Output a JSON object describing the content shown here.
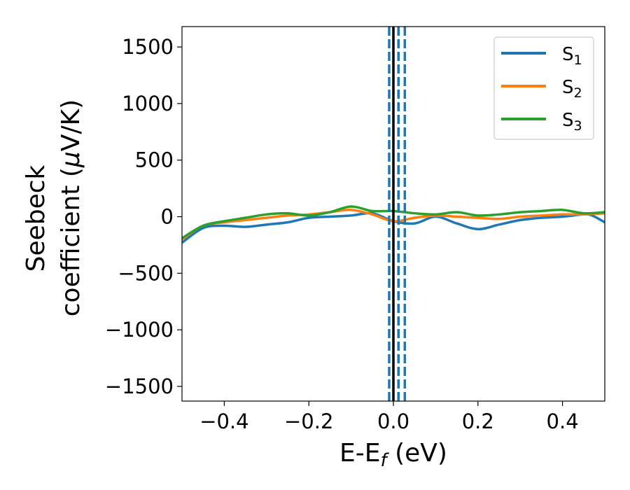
{
  "chart_data": {
    "type": "line",
    "xlabel": {
      "main": "E-E",
      "sub": "f",
      "rest": " (eV)"
    },
    "ylabel": {
      "line1": "Seebeck",
      "line2_pre": "coefficient  (",
      "mu": "μ",
      "line2_post": "V/K)"
    },
    "xlim": [
      -0.5,
      0.5
    ],
    "ylim": [
      -1630,
      1680
    ],
    "xticks": [
      -0.4,
      -0.2,
      0.0,
      0.2,
      0.4
    ],
    "xtick_labels": [
      "−0.4",
      "−0.2",
      "0.0",
      "0.2",
      "0.4"
    ],
    "yticks": [
      -1500,
      -1000,
      -500,
      0,
      500,
      1000,
      1500
    ],
    "ytick_labels": [
      "−1500",
      "−1000",
      "−500",
      "0",
      "500",
      "1000",
      "1500"
    ],
    "grid": false,
    "legend_position": "top-right",
    "series": [
      {
        "name": "S",
        "sub": "1",
        "color": "#1f77b4",
        "x": [
          -0.5,
          -0.45,
          -0.4,
          -0.35,
          -0.3,
          -0.25,
          -0.2,
          -0.15,
          -0.1,
          -0.05,
          0.0,
          0.05,
          0.1,
          0.15,
          0.2,
          0.25,
          0.3,
          0.35,
          0.4,
          0.45,
          0.47,
          0.5
        ],
        "y": [
          -230,
          -100,
          -80,
          -90,
          -70,
          -50,
          -10,
          0,
          10,
          30,
          -40,
          -60,
          0,
          -60,
          -110,
          -70,
          -30,
          -10,
          0,
          20,
          10,
          -50
        ]
      },
      {
        "name": "S",
        "sub": "2",
        "color": "#ff7f0e",
        "x": [
          -0.5,
          -0.45,
          -0.4,
          -0.35,
          -0.3,
          -0.25,
          -0.2,
          -0.15,
          -0.1,
          -0.05,
          0.0,
          0.05,
          0.1,
          0.15,
          0.2,
          0.25,
          0.3,
          0.35,
          0.4,
          0.45,
          0.5
        ],
        "y": [
          -200,
          -80,
          -50,
          -30,
          -10,
          10,
          20,
          40,
          60,
          20,
          -40,
          -10,
          10,
          0,
          -10,
          -20,
          0,
          10,
          20,
          20,
          30
        ]
      },
      {
        "name": "S",
        "sub": "3",
        "color": "#2ca02c",
        "x": [
          -0.5,
          -0.45,
          -0.4,
          -0.35,
          -0.3,
          -0.25,
          -0.2,
          -0.15,
          -0.1,
          -0.05,
          0.0,
          0.05,
          0.1,
          0.15,
          0.2,
          0.25,
          0.3,
          0.35,
          0.4,
          0.45,
          0.5
        ],
        "y": [
          -190,
          -80,
          -40,
          -10,
          20,
          30,
          10,
          40,
          90,
          50,
          50,
          30,
          20,
          40,
          10,
          20,
          40,
          50,
          60,
          30,
          40
        ]
      }
    ],
    "vertical_lines": [
      {
        "x": -0.01,
        "style": "dashed",
        "color": "#1f77b4"
      },
      {
        "x": 0.0,
        "style": "solid",
        "color": "#000000"
      },
      {
        "x": 0.012,
        "style": "dashed",
        "color": "#1f77b4"
      },
      {
        "x": 0.027,
        "style": "dashed",
        "color": "#1f77b4"
      }
    ]
  }
}
